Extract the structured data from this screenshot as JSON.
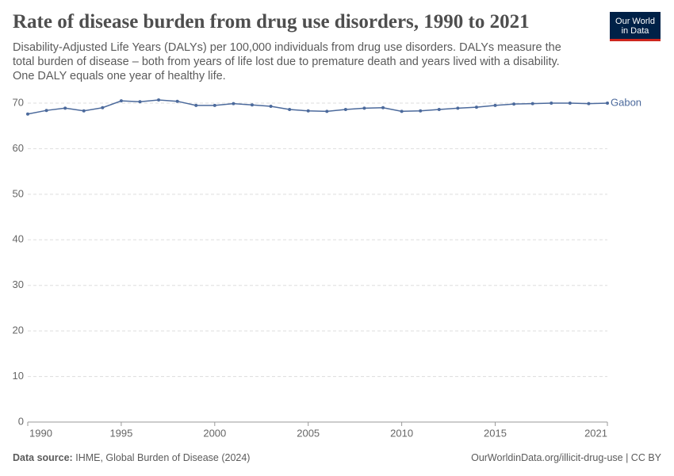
{
  "chart_data": {
    "type": "line",
    "title": "Rate of disease burden from drug use disorders, 1990 to 2021",
    "subtitle": "Disability-Adjusted Life Years (DALYs) per 100,000 individuals from drug use disorders. DALYs measure the total burden of disease – both from years of life lost due to premature death and years lived with a disability. One DALY equals one year of healthy life.",
    "logo": [
      "Our World",
      "in Data"
    ],
    "source_label": "Data source:",
    "source": "IHME, Global Burden of Disease (2024)",
    "url": "OurWorldinData.org/illicit-drug-use | CC BY",
    "x": [
      1990,
      1991,
      1992,
      1993,
      1994,
      1995,
      1996,
      1997,
      1998,
      1999,
      2000,
      2001,
      2002,
      2003,
      2004,
      2005,
      2006,
      2007,
      2008,
      2009,
      2010,
      2011,
      2012,
      2013,
      2014,
      2015,
      2016,
      2017,
      2018,
      2019,
      2020,
      2021
    ],
    "series": [
      {
        "name": "Gabon",
        "color": "#4c6a9c",
        "values": [
          67.6,
          68.4,
          68.9,
          68.3,
          69.0,
          70.5,
          70.3,
          70.7,
          70.4,
          69.5,
          69.5,
          69.9,
          69.6,
          69.3,
          68.6,
          68.3,
          68.2,
          68.6,
          68.9,
          69.0,
          68.2,
          68.3,
          68.6,
          68.9,
          69.1,
          69.5,
          69.8,
          69.9,
          70.0,
          70.0,
          69.9,
          70.0
        ]
      }
    ],
    "xlim": [
      1990,
      2021
    ],
    "xticks": [
      1990,
      1995,
      2000,
      2005,
      2010,
      2015,
      2021
    ],
    "ylim": [
      0,
      70
    ],
    "yticks": [
      0,
      10,
      20,
      30,
      40,
      50,
      60,
      70
    ],
    "grid": true
  }
}
